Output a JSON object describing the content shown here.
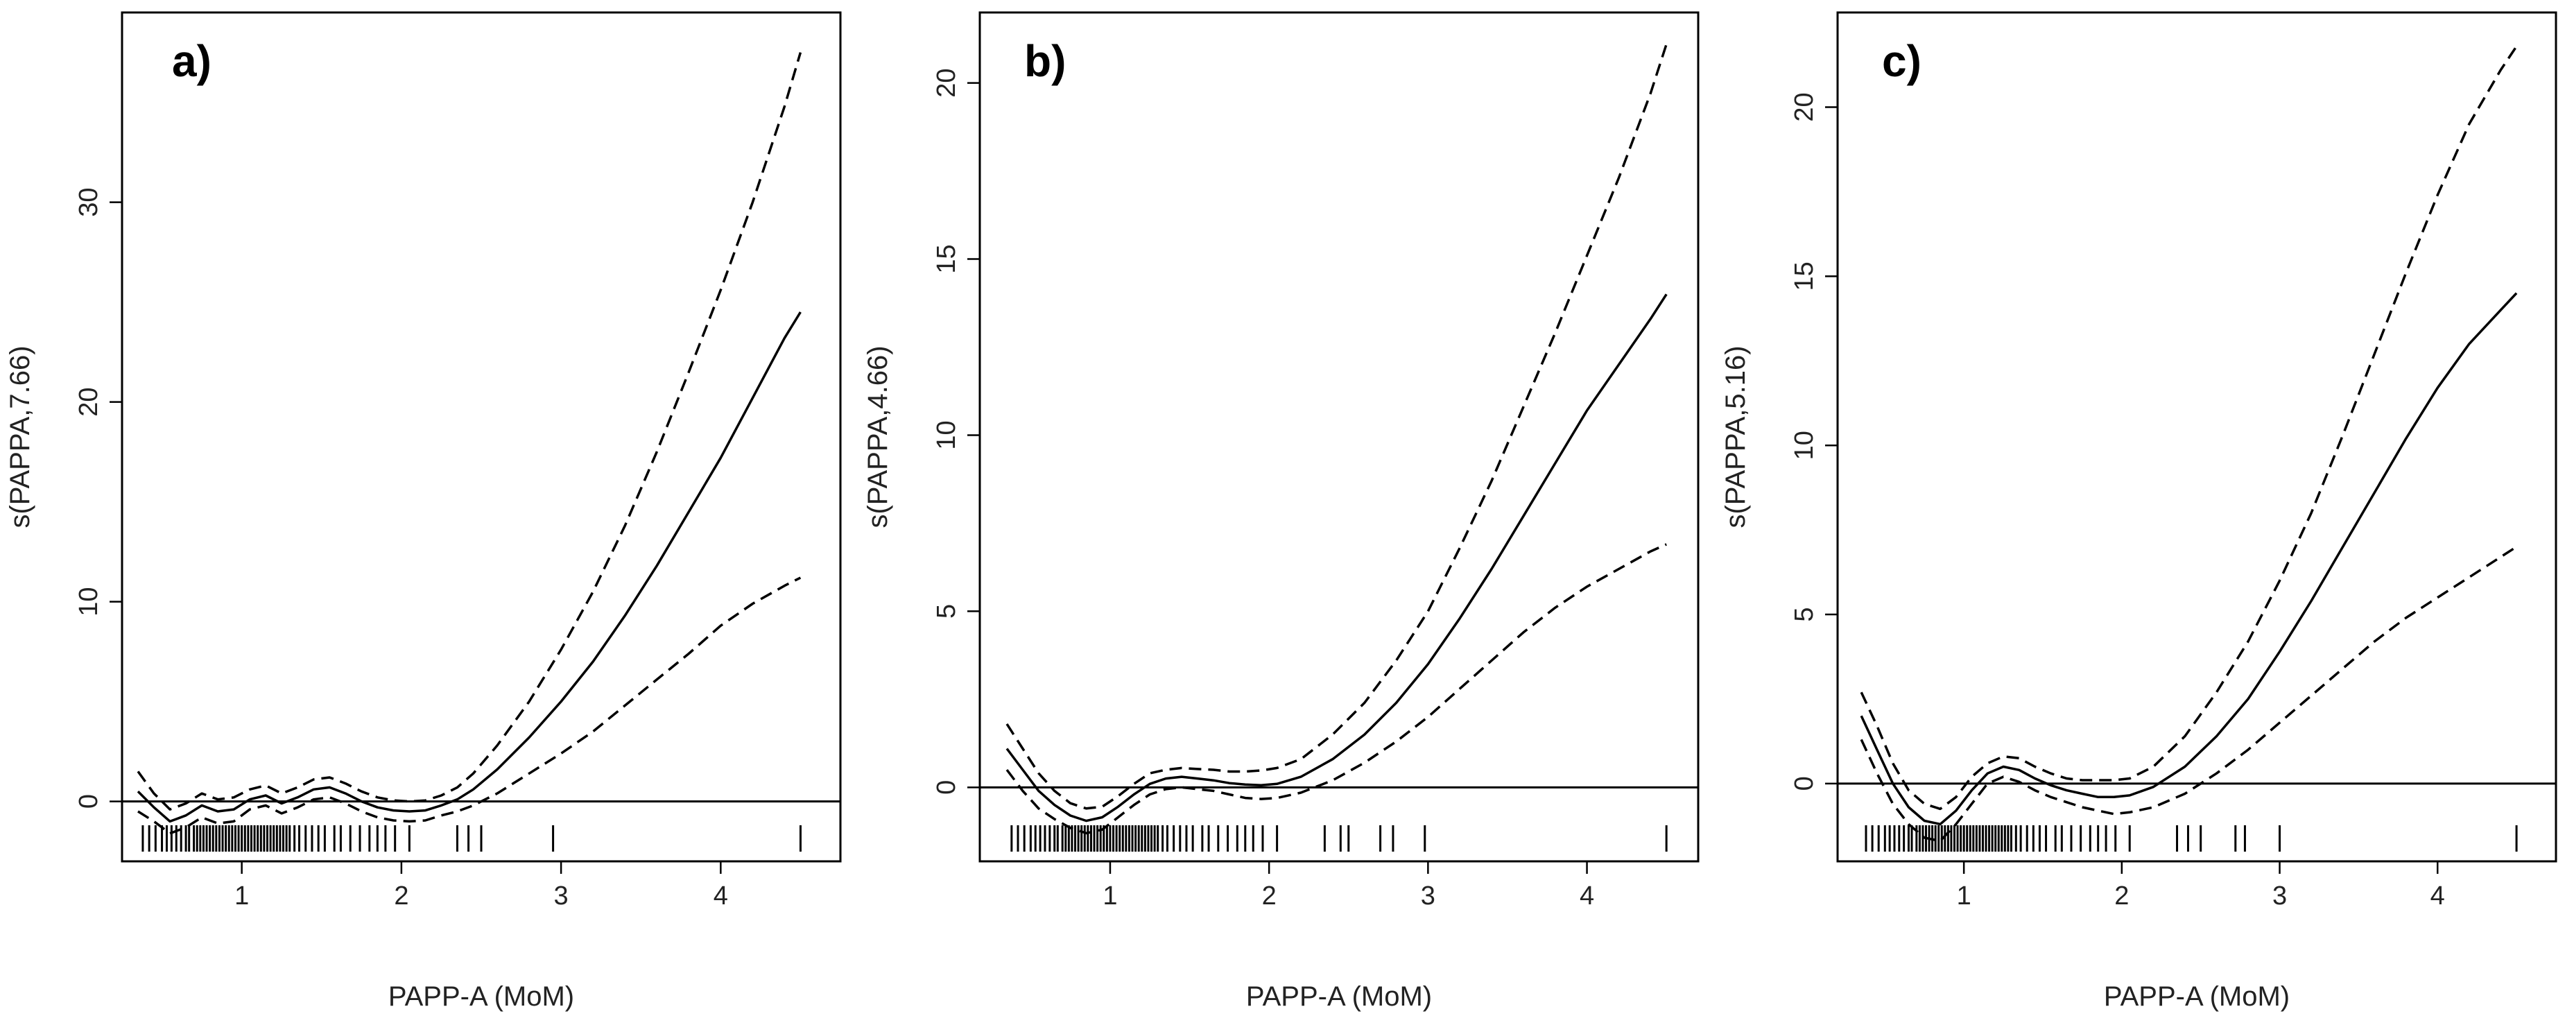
{
  "chart_data": [
    {
      "type": "line",
      "panel_label": "a)",
      "xlabel": "PAPP-A (MoM)",
      "ylabel": "s(PAPPA,7.66)",
      "xlim": [
        0.25,
        4.75
      ],
      "ylim": [
        -3,
        39.5
      ],
      "xticks": [
        1,
        2,
        3,
        4
      ],
      "yticks": [
        0,
        10,
        20,
        30
      ],
      "hline": 0,
      "series": [
        {
          "role": "fit",
          "x": [
            0.35,
            0.45,
            0.55,
            0.65,
            0.75,
            0.85,
            0.95,
            1.05,
            1.15,
            1.25,
            1.35,
            1.45,
            1.55,
            1.65,
            1.75,
            1.85,
            1.95,
            2.05,
            2.15,
            2.25,
            2.35,
            2.45,
            2.6,
            2.8,
            3.0,
            3.2,
            3.4,
            3.6,
            3.8,
            4.0,
            4.2,
            4.4,
            4.5
          ],
          "y": [
            0.5,
            -0.3,
            -1.0,
            -0.7,
            -0.2,
            -0.5,
            -0.4,
            0.1,
            0.3,
            -0.1,
            0.2,
            0.6,
            0.7,
            0.4,
            0.0,
            -0.3,
            -0.45,
            -0.5,
            -0.45,
            -0.2,
            0.1,
            0.6,
            1.6,
            3.2,
            5.0,
            7.0,
            9.3,
            11.8,
            14.5,
            17.2,
            20.2,
            23.2,
            24.5
          ]
        },
        {
          "role": "upper",
          "x": [
            0.35,
            0.45,
            0.55,
            0.65,
            0.75,
            0.85,
            0.95,
            1.05,
            1.15,
            1.25,
            1.35,
            1.45,
            1.55,
            1.65,
            1.75,
            1.85,
            1.95,
            2.05,
            2.15,
            2.25,
            2.35,
            2.45,
            2.6,
            2.8,
            3.0,
            3.2,
            3.4,
            3.6,
            3.8,
            4.0,
            4.2,
            4.4,
            4.5
          ],
          "y": [
            1.5,
            0.4,
            -0.4,
            -0.1,
            0.4,
            0.1,
            0.2,
            0.6,
            0.8,
            0.4,
            0.7,
            1.1,
            1.2,
            0.9,
            0.5,
            0.2,
            0.05,
            0.0,
            0.05,
            0.3,
            0.7,
            1.4,
            2.8,
            5.0,
            7.6,
            10.5,
            13.8,
            17.5,
            21.5,
            25.6,
            30.0,
            34.8,
            37.5
          ]
        },
        {
          "role": "lower",
          "x": [
            0.35,
            0.45,
            0.55,
            0.65,
            0.75,
            0.85,
            0.95,
            1.05,
            1.15,
            1.25,
            1.35,
            1.45,
            1.55,
            1.65,
            1.75,
            1.85,
            1.95,
            2.05,
            2.15,
            2.25,
            2.35,
            2.45,
            2.6,
            2.8,
            3.0,
            3.2,
            3.4,
            3.6,
            3.8,
            4.0,
            4.2,
            4.4,
            4.5
          ],
          "y": [
            -0.5,
            -1.0,
            -1.6,
            -1.3,
            -0.8,
            -1.1,
            -1.0,
            -0.4,
            -0.2,
            -0.6,
            -0.3,
            0.1,
            0.2,
            -0.1,
            -0.5,
            -0.8,
            -0.95,
            -1.0,
            -0.95,
            -0.7,
            -0.5,
            -0.2,
            0.4,
            1.4,
            2.4,
            3.5,
            4.8,
            6.1,
            7.4,
            8.8,
            9.9,
            10.8,
            11.2
          ]
        }
      ],
      "rug": [
        0.38,
        0.42,
        0.46,
        0.5,
        0.53,
        0.56,
        0.59,
        0.62,
        0.65,
        0.67,
        0.7,
        0.72,
        0.74,
        0.76,
        0.78,
        0.8,
        0.82,
        0.84,
        0.86,
        0.88,
        0.9,
        0.92,
        0.94,
        0.96,
        0.98,
        1.0,
        1.02,
        1.04,
        1.06,
        1.08,
        1.1,
        1.12,
        1.14,
        1.16,
        1.18,
        1.2,
        1.22,
        1.24,
        1.26,
        1.28,
        1.3,
        1.33,
        1.36,
        1.4,
        1.44,
        1.48,
        1.52,
        1.58,
        1.62,
        1.68,
        1.74,
        1.8,
        1.85,
        1.9,
        1.96,
        2.05,
        2.35,
        2.42,
        2.5,
        2.95,
        4.5
      ]
    },
    {
      "type": "line",
      "panel_label": "b)",
      "xlabel": "PAPP-A (MoM)",
      "ylabel": "s(PAPPA,4.66)",
      "xlim": [
        0.18,
        4.7
      ],
      "ylim": [
        -2.1,
        22
      ],
      "xticks": [
        1,
        2,
        3,
        4
      ],
      "yticks": [
        0,
        5,
        10,
        15,
        20
      ],
      "hline": 0,
      "series": [
        {
          "role": "fit",
          "x": [
            0.35,
            0.45,
            0.55,
            0.65,
            0.75,
            0.85,
            0.95,
            1.05,
            1.15,
            1.25,
            1.35,
            1.45,
            1.55,
            1.65,
            1.75,
            1.85,
            1.95,
            2.05,
            2.2,
            2.4,
            2.6,
            2.8,
            3.0,
            3.2,
            3.4,
            3.6,
            3.8,
            4.0,
            4.2,
            4.4,
            4.5
          ],
          "y": [
            1.1,
            0.5,
            -0.1,
            -0.5,
            -0.8,
            -0.95,
            -0.85,
            -0.55,
            -0.2,
            0.1,
            0.25,
            0.3,
            0.25,
            0.2,
            0.12,
            0.08,
            0.06,
            0.1,
            0.3,
            0.8,
            1.5,
            2.4,
            3.5,
            4.8,
            6.2,
            7.7,
            9.2,
            10.7,
            12.0,
            13.3,
            14.0
          ]
        },
        {
          "role": "upper",
          "x": [
            0.35,
            0.45,
            0.55,
            0.65,
            0.75,
            0.85,
            0.95,
            1.05,
            1.15,
            1.25,
            1.35,
            1.45,
            1.55,
            1.65,
            1.75,
            1.85,
            1.95,
            2.05,
            2.2,
            2.4,
            2.6,
            2.8,
            3.0,
            3.2,
            3.4,
            3.6,
            3.8,
            4.0,
            4.2,
            4.4,
            4.5
          ],
          "y": [
            1.8,
            1.1,
            0.4,
            -0.1,
            -0.45,
            -0.6,
            -0.55,
            -0.25,
            0.1,
            0.4,
            0.5,
            0.55,
            0.52,
            0.5,
            0.45,
            0.45,
            0.48,
            0.55,
            0.8,
            1.5,
            2.4,
            3.6,
            5.0,
            6.8,
            8.7,
            10.8,
            12.9,
            15.1,
            17.3,
            19.7,
            21.1
          ]
        },
        {
          "role": "lower",
          "x": [
            0.35,
            0.45,
            0.55,
            0.65,
            0.75,
            0.85,
            0.95,
            1.05,
            1.15,
            1.25,
            1.35,
            1.45,
            1.55,
            1.65,
            1.75,
            1.85,
            1.95,
            2.05,
            2.2,
            2.4,
            2.6,
            2.8,
            3.0,
            3.2,
            3.4,
            3.6,
            3.8,
            4.0,
            4.2,
            4.4,
            4.5
          ],
          "y": [
            0.5,
            -0.1,
            -0.6,
            -0.9,
            -1.15,
            -1.3,
            -1.2,
            -0.85,
            -0.5,
            -0.2,
            -0.05,
            0.0,
            -0.05,
            -0.1,
            -0.2,
            -0.3,
            -0.33,
            -0.3,
            -0.15,
            0.2,
            0.7,
            1.3,
            2.0,
            2.8,
            3.6,
            4.4,
            5.1,
            5.7,
            6.2,
            6.7,
            6.9
          ]
        }
      ],
      "rug": [
        0.38,
        0.42,
        0.46,
        0.5,
        0.53,
        0.56,
        0.59,
        0.62,
        0.65,
        0.67,
        0.7,
        0.72,
        0.74,
        0.76,
        0.78,
        0.8,
        0.82,
        0.84,
        0.86,
        0.88,
        0.9,
        0.92,
        0.94,
        0.96,
        0.98,
        1.0,
        1.02,
        1.04,
        1.06,
        1.08,
        1.1,
        1.12,
        1.14,
        1.16,
        1.18,
        1.2,
        1.22,
        1.24,
        1.26,
        1.28,
        1.3,
        1.33,
        1.36,
        1.4,
        1.44,
        1.48,
        1.52,
        1.58,
        1.62,
        1.68,
        1.74,
        1.8,
        1.85,
        1.9,
        1.96,
        2.05,
        2.35,
        2.45,
        2.5,
        2.7,
        2.78,
        2.98,
        4.5
      ]
    },
    {
      "type": "line",
      "panel_label": "c)",
      "xlabel": "PAPP-A (MoM)",
      "ylabel": "s(PAPPA,5.16)",
      "xlim": [
        0.2,
        4.75
      ],
      "ylim": [
        -2.3,
        22.8
      ],
      "xticks": [
        1,
        2,
        3,
        4
      ],
      "yticks": [
        0,
        5,
        10,
        15,
        20
      ],
      "hline": 0,
      "series": [
        {
          "role": "fit",
          "x": [
            0.35,
            0.45,
            0.55,
            0.65,
            0.75,
            0.85,
            0.95,
            1.05,
            1.15,
            1.25,
            1.35,
            1.45,
            1.55,
            1.65,
            1.75,
            1.85,
            1.95,
            2.05,
            2.2,
            2.4,
            2.6,
            2.8,
            3.0,
            3.2,
            3.4,
            3.6,
            3.8,
            4.0,
            4.2,
            4.4,
            4.5
          ],
          "y": [
            2.0,
            1.0,
            0.0,
            -0.7,
            -1.1,
            -1.2,
            -0.8,
            -0.2,
            0.3,
            0.5,
            0.4,
            0.15,
            -0.05,
            -0.2,
            -0.3,
            -0.4,
            -0.4,
            -0.35,
            -0.1,
            0.5,
            1.4,
            2.5,
            3.9,
            5.4,
            7.0,
            8.6,
            10.2,
            11.7,
            13.0,
            14.0,
            14.5
          ]
        },
        {
          "role": "upper",
          "x": [
            0.35,
            0.45,
            0.55,
            0.65,
            0.75,
            0.85,
            0.95,
            1.05,
            1.15,
            1.25,
            1.35,
            1.45,
            1.55,
            1.65,
            1.75,
            1.85,
            1.95,
            2.05,
            2.2,
            2.4,
            2.6,
            2.8,
            3.0,
            3.2,
            3.4,
            3.6,
            3.8,
            4.0,
            4.2,
            4.4,
            4.5
          ],
          "y": [
            2.7,
            1.7,
            0.6,
            -0.2,
            -0.6,
            -0.75,
            -0.4,
            0.2,
            0.6,
            0.8,
            0.75,
            0.5,
            0.3,
            0.15,
            0.1,
            0.1,
            0.1,
            0.15,
            0.5,
            1.4,
            2.7,
            4.2,
            6.0,
            8.0,
            10.3,
            12.7,
            15.1,
            17.4,
            19.5,
            21.1,
            21.8
          ]
        },
        {
          "role": "lower",
          "x": [
            0.35,
            0.45,
            0.55,
            0.65,
            0.75,
            0.85,
            0.95,
            1.05,
            1.15,
            1.25,
            1.35,
            1.45,
            1.55,
            1.65,
            1.75,
            1.85,
            1.95,
            2.05,
            2.2,
            2.4,
            2.6,
            2.8,
            3.0,
            3.2,
            3.4,
            3.6,
            3.8,
            4.0,
            4.2,
            4.4,
            4.5
          ],
          "y": [
            1.3,
            0.3,
            -0.6,
            -1.2,
            -1.6,
            -1.7,
            -1.2,
            -0.6,
            0.0,
            0.2,
            0.05,
            -0.2,
            -0.4,
            -0.55,
            -0.7,
            -0.8,
            -0.9,
            -0.85,
            -0.7,
            -0.3,
            0.3,
            1.0,
            1.8,
            2.6,
            3.4,
            4.2,
            4.9,
            5.5,
            6.1,
            6.7,
            7.0
          ]
        }
      ],
      "rug": [
        0.38,
        0.42,
        0.46,
        0.5,
        0.53,
        0.56,
        0.59,
        0.62,
        0.65,
        0.67,
        0.7,
        0.72,
        0.74,
        0.76,
        0.78,
        0.8,
        0.82,
        0.84,
        0.86,
        0.88,
        0.9,
        0.92,
        0.94,
        0.96,
        0.98,
        1.0,
        1.02,
        1.04,
        1.06,
        1.08,
        1.1,
        1.12,
        1.14,
        1.16,
        1.18,
        1.2,
        1.22,
        1.24,
        1.26,
        1.28,
        1.3,
        1.33,
        1.36,
        1.4,
        1.44,
        1.48,
        1.52,
        1.58,
        1.62,
        1.68,
        1.74,
        1.8,
        1.85,
        1.9,
        1.96,
        2.05,
        2.35,
        2.42,
        2.5,
        2.72,
        2.78,
        3.0,
        4.5
      ]
    }
  ]
}
